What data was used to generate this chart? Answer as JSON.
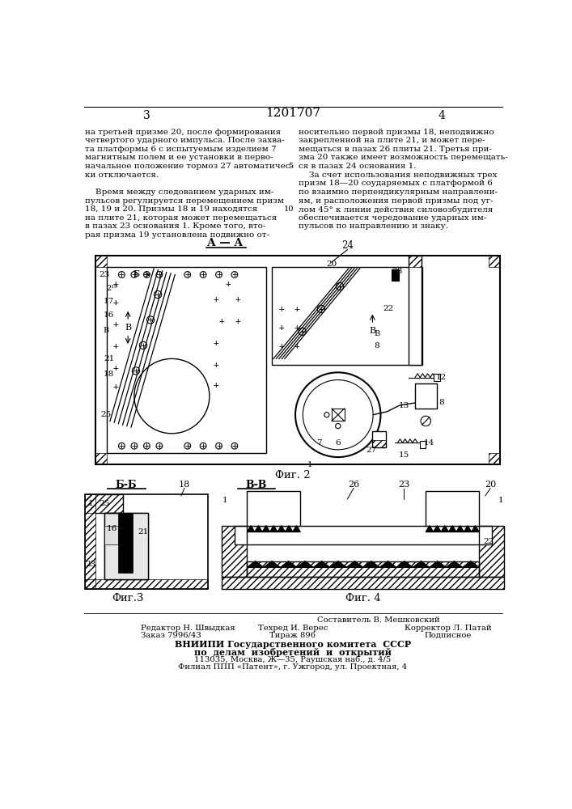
{
  "patent_number": "1201707",
  "page_numbers": [
    "3",
    "4"
  ],
  "left_text": [
    "на третьей призме 20, после формирования",
    "четвертого ударного импульса. После захва-",
    "та платформы 6 с испытуемым изделием 7",
    "магнитным полем и ее установки в перво-",
    "начальное положение тормоз 27 автоматичес-",
    "ки отключается.",
    "",
    "    Время между следованием ударных им-",
    "пульсов регулируется перемещением призм",
    "18, 19 и 20. Призмы 18 и 19 находятся",
    "на плите 21, которая может перемещаться",
    "в пазах 23 основания 1. Кроме того, вто-",
    "рая призма 19 установлена подвижно от-"
  ],
  "right_text": [
    "носительно первой призмы 18, неподвижно",
    "закрепленной на плите 21, и может пере-",
    "мещаться в пазах 26 плиты 21. Третья при-",
    "зма 20 также имеет возможность перемещать-",
    "ся в пазах 24 основания 1.",
    "    За счет использования неподвижных трех",
    "призм 18—20 соударяемых с платформой 6",
    "по взаимно перпендикулярным направлени-",
    "ям, и расположения первой призмы под уг-",
    "лом 45° к линии действия силовозбудителя",
    "обеспечивается чередование ударных им-",
    "пульсов по направлению и знаку."
  ],
  "fig2_label": "Фиг. 2",
  "fig3_label": "Фиг.3",
  "fig4_label": "Фиг. 4",
  "section_aa": "А — А",
  "section_bb": "Б-Б",
  "section_vv": "В-В",
  "footer_line0": "Составитель В. Мешковский",
  "footer_line1a": "Редактор Н. Швыдкая",
  "footer_line1b": "Техред И. Верес",
  "footer_line1c": "Корректор Л. Патай",
  "footer_line2a": "Заказ 7996/43",
  "footer_line2b": "Тираж 896",
  "footer_line2c": "Подписное",
  "footer_line3": "ВНИИПИ Государственного комитета  СССР",
  "footer_line4": "по  делам  изобретений  и  открытий",
  "footer_line5": "113035, Москва, Ж—35, Раушская наб., д. 4/5",
  "footer_line6": "Филиал ППП «Патент», г. Ужгород, ул. Проектная, 4",
  "bg_color": "#ffffff",
  "text_color": "#000000"
}
